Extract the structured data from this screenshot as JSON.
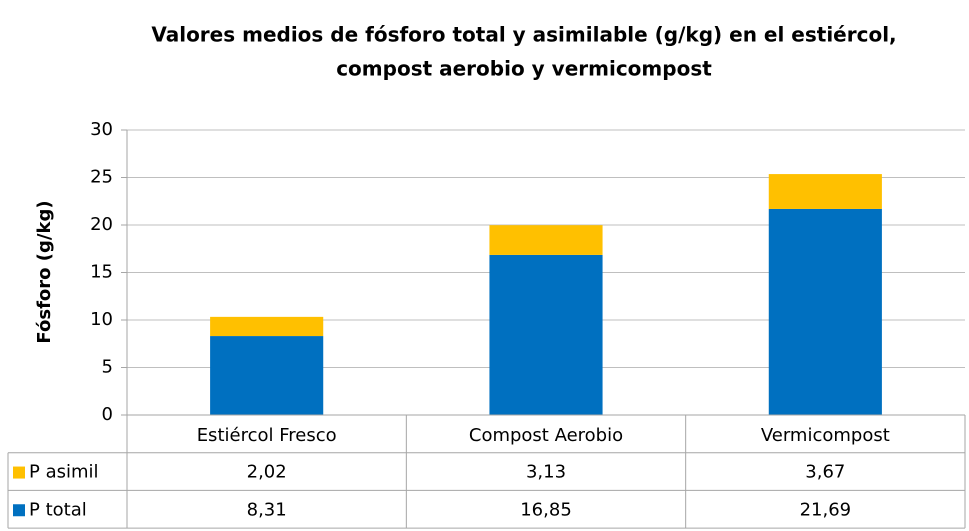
{
  "chart_data": {
    "type": "bar",
    "stacked": true,
    "title": [
      "Valores medios de fósforo total y asimilable (g/kg) en el estiércol,",
      "compost aerobio y vermicompost"
    ],
    "y_label": "Fósforo (g/kg)",
    "categories": [
      "Estiércol Fresco",
      "Compost Aerobio",
      "Vermicompost"
    ],
    "series": [
      {
        "name": "P total",
        "color": "#0070c0",
        "values": [
          8.31,
          16.85,
          21.69
        ],
        "value_labels": [
          "8,31",
          "16,85",
          "21,69"
        ]
      },
      {
        "name": "P asimil",
        "color": "#ffc000",
        "values": [
          2.02,
          3.13,
          3.67
        ],
        "value_labels": [
          "2,02",
          "3,13",
          "3,67"
        ]
      }
    ],
    "ylim": [
      0,
      30
    ],
    "yticks": [
      0,
      5,
      10,
      15,
      20,
      25,
      30
    ],
    "grid": true
  }
}
